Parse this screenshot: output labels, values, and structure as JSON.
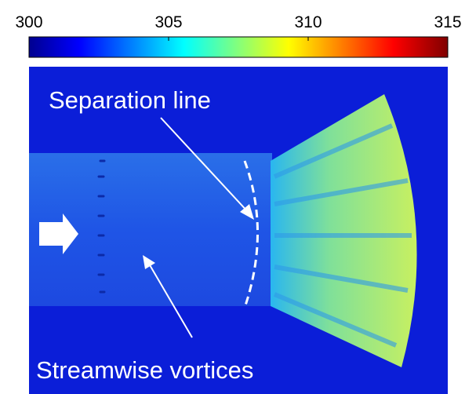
{
  "colorbar": {
    "lim": [
      300,
      315
    ],
    "ticks": [
      300,
      305,
      310,
      315
    ]
  },
  "annotations": {
    "separation": "Separation line",
    "vortices": "Streamwise vortices"
  }
}
